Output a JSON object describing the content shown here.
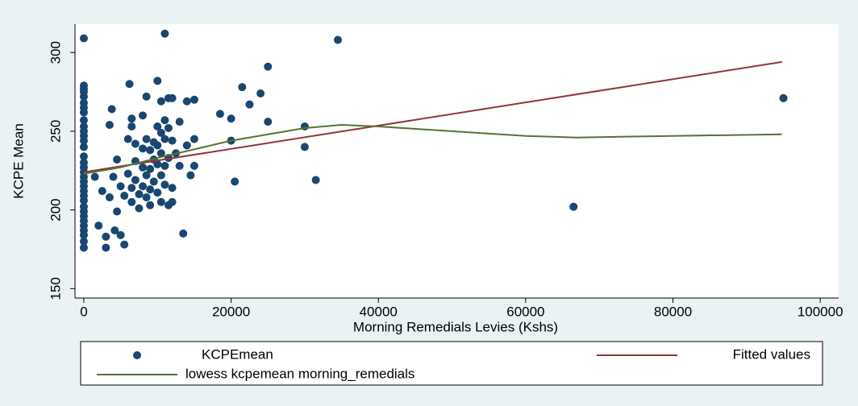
{
  "chart_data": {
    "type": "scatter",
    "y_label": "KCPE Mean",
    "x_label": "Morning Remedials Levies (Kshs)",
    "xlim": [
      -1200,
      102500
    ],
    "ylim": [
      144,
      318
    ],
    "xticks": [
      0,
      20000,
      40000,
      60000,
      80000,
      100000
    ],
    "yticks": [
      150,
      200,
      250,
      300
    ],
    "grid": false,
    "series": [
      {
        "name": "KCPEmean",
        "mode": "markers",
        "color": "#1a476f",
        "x": [
          0,
          0,
          0,
          0,
          0,
          0,
          0,
          0,
          0,
          0,
          0,
          0,
          0,
          0,
          0,
          0,
          0,
          0,
          0,
          0,
          0,
          0,
          0,
          0,
          0,
          0,
          0,
          0,
          0,
          0,
          0,
          0,
          0,
          1500,
          2000,
          2500,
          3000,
          3000,
          3500,
          3800,
          3500,
          4000,
          4200,
          4500,
          4500,
          5000,
          5000,
          5500,
          5500,
          6000,
          6000,
          6200,
          6500,
          6500,
          6500,
          6500,
          7000,
          7000,
          7000,
          7500,
          7500,
          8000,
          8000,
          8000,
          8000,
          8500,
          8500,
          8500,
          8500,
          9000,
          9000,
          9000,
          9000,
          9500,
          9500,
          9500,
          10000,
          10000,
          10000,
          10000,
          10000,
          10500,
          10500,
          10500,
          10500,
          10500,
          11000,
          11000,
          11000,
          11000,
          11000,
          11500,
          11500,
          11500,
          11500,
          12000,
          12000,
          12000,
          12000,
          12500,
          13000,
          13000,
          13500,
          14000,
          14000,
          14500,
          15000,
          15000,
          15000,
          18500,
          20000,
          20000,
          20500,
          21500,
          22500,
          24000,
          25000,
          25000,
          30000,
          30000,
          31500,
          34500,
          66500,
          95000
        ],
        "values": [
          309,
          279,
          277,
          275,
          272,
          268,
          265,
          262,
          257,
          253,
          250,
          247,
          244,
          240,
          234,
          230,
          227,
          224,
          221,
          218,
          215,
          212,
          209,
          206,
          202,
          199,
          196,
          193,
          190,
          187,
          184,
          180,
          176,
          221,
          190,
          212,
          183,
          176,
          254,
          264,
          208,
          221,
          187,
          232,
          199,
          184,
          215,
          178,
          209,
          245,
          223,
          280,
          258,
          253,
          214,
          205,
          242,
          231,
          219,
          210,
          201,
          260,
          239,
          227,
          215,
          272,
          245,
          222,
          208,
          238,
          226,
          213,
          203,
          243,
          232,
          218,
          282,
          253,
          241,
          229,
          211,
          269,
          249,
          236,
          222,
          205,
          312,
          257,
          245,
          228,
          216,
          271,
          252,
          233,
          203,
          271,
          244,
          214,
          205,
          236,
          256,
          228,
          185,
          269,
          241,
          222,
          270,
          245,
          228,
          261,
          244,
          258,
          218,
          278,
          267,
          274,
          291,
          256,
          253,
          240,
          219,
          308,
          202,
          271
        ]
      },
      {
        "name": "Fitted values",
        "mode": "line",
        "color": "#90353b",
        "x": [
          0,
          94800
        ],
        "values": [
          224,
          294
        ]
      },
      {
        "name": "lowess kcpemean morning_remedials",
        "mode": "line",
        "color": "#55752f",
        "x": [
          0,
          5000,
          10000,
          20000,
          30000,
          35000,
          40000,
          50000,
          60000,
          67000,
          80000,
          94800
        ],
        "values": [
          223,
          227,
          233,
          244,
          252,
          254,
          253,
          250,
          247,
          246,
          247,
          248
        ]
      }
    ]
  }
}
